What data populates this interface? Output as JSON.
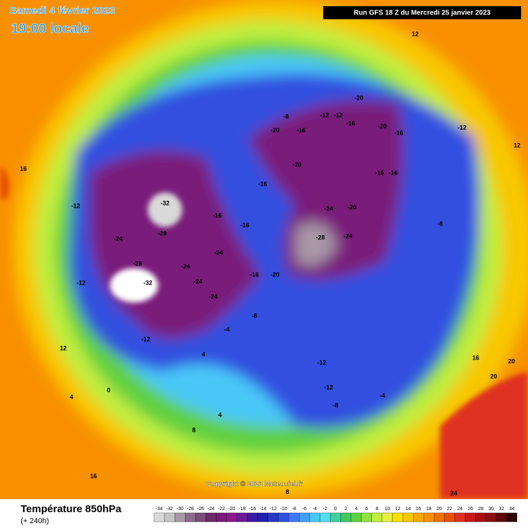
{
  "header": {
    "date": "Samedi 4 février 2023",
    "time": "19:00 locale",
    "run": "Run GFS 18 Z du Mercredi 25 janvier 2023"
  },
  "map": {
    "copyright": "Copyright © 2023 Meteociel.fr",
    "contour_labels": [
      -32,
      -32,
      -28,
      -28,
      -24,
      -24,
      -24,
      -24,
      -24,
      -16,
      -16,
      -16,
      -16,
      -20,
      -20,
      -20,
      -20,
      -16,
      -12,
      -12,
      -16,
      -20,
      -16,
      -28,
      -24,
      -24,
      -20,
      -16,
      -16,
      -12,
      -12,
      -8,
      -12,
      -12,
      -12,
      0,
      4,
      4,
      8,
      12,
      12,
      16,
      16,
      20,
      20,
      24,
      16,
      12,
      8,
      -8,
      -4,
      -4,
      -8,
      -8,
      -12,
      4
    ],
    "contour_label_color": "#000000"
  },
  "legend": {
    "title": "Température 850hPa",
    "subtitle": "(+ 240h)",
    "values": [
      -34,
      -32,
      -30,
      -28,
      -26,
      -24,
      -22,
      -20,
      -18,
      -16,
      -14,
      -12,
      -10,
      -8,
      -6,
      -4,
      -2,
      0,
      2,
      4,
      6,
      8,
      10,
      12,
      14,
      16,
      18,
      20,
      22,
      24,
      26,
      28,
      30,
      32,
      34
    ],
    "colors": [
      "#d9d9d9",
      "#c4c4c4",
      "#a898a8",
      "#8c6c8c",
      "#7a4d7a",
      "#6b2a6b",
      "#7a1a7a",
      "#8c1a8c",
      "#6a1a9a",
      "#3a1aa0",
      "#2020b0",
      "#2838c8",
      "#3050e0",
      "#3c78f0",
      "#40a0f8",
      "#48c8f8",
      "#50e0f0",
      "#40d0a0",
      "#40c860",
      "#60d040",
      "#90e040",
      "#c0ee40",
      "#e8f040",
      "#f8e000",
      "#f8c800",
      "#f8a800",
      "#f89000",
      "#f07000",
      "#e85000",
      "#e03020",
      "#c81818",
      "#a81010",
      "#881010",
      "#600808",
      "#300000"
    ]
  }
}
